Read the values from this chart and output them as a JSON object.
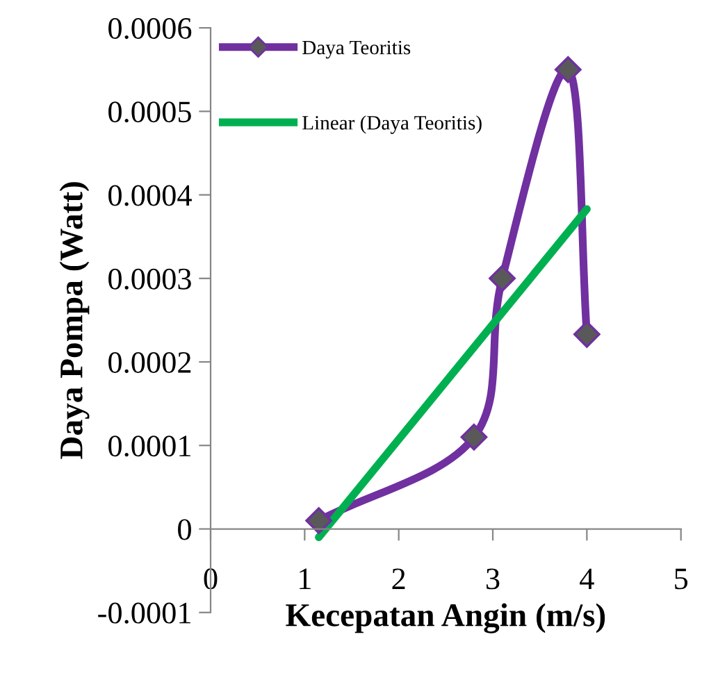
{
  "chart_data": {
    "type": "line",
    "xlabel": "Kecepatan Angin (m/s)",
    "ylabel": "Daya Pompa (Watt)",
    "xlim": [
      0,
      5
    ],
    "xticks": [
      0,
      1,
      2,
      3,
      4,
      5
    ],
    "ylim": [
      -0.0001,
      0.0006
    ],
    "yticks": [
      -0.0001,
      0,
      0.0001,
      0.0002,
      0.0003,
      0.0004,
      0.0005,
      0.0006
    ],
    "grid": false,
    "legend": "top left",
    "series": [
      {
        "name": "Daya Teoritis",
        "color": "#7030a0",
        "x": [
          1.15,
          2.8,
          3.1,
          3.8,
          4.0
        ],
        "values": [
          1e-05,
          0.00011,
          0.0003,
          0.00055,
          0.000233
        ],
        "marker": "diamond",
        "line_style": "solid"
      },
      {
        "name": "Linear (Daya Teoritis)",
        "color": "#00b050",
        "x": [
          1.15,
          4.0
        ],
        "values": [
          -1e-05,
          0.000383
        ],
        "marker": "none",
        "line_style": "solid"
      }
    ]
  }
}
